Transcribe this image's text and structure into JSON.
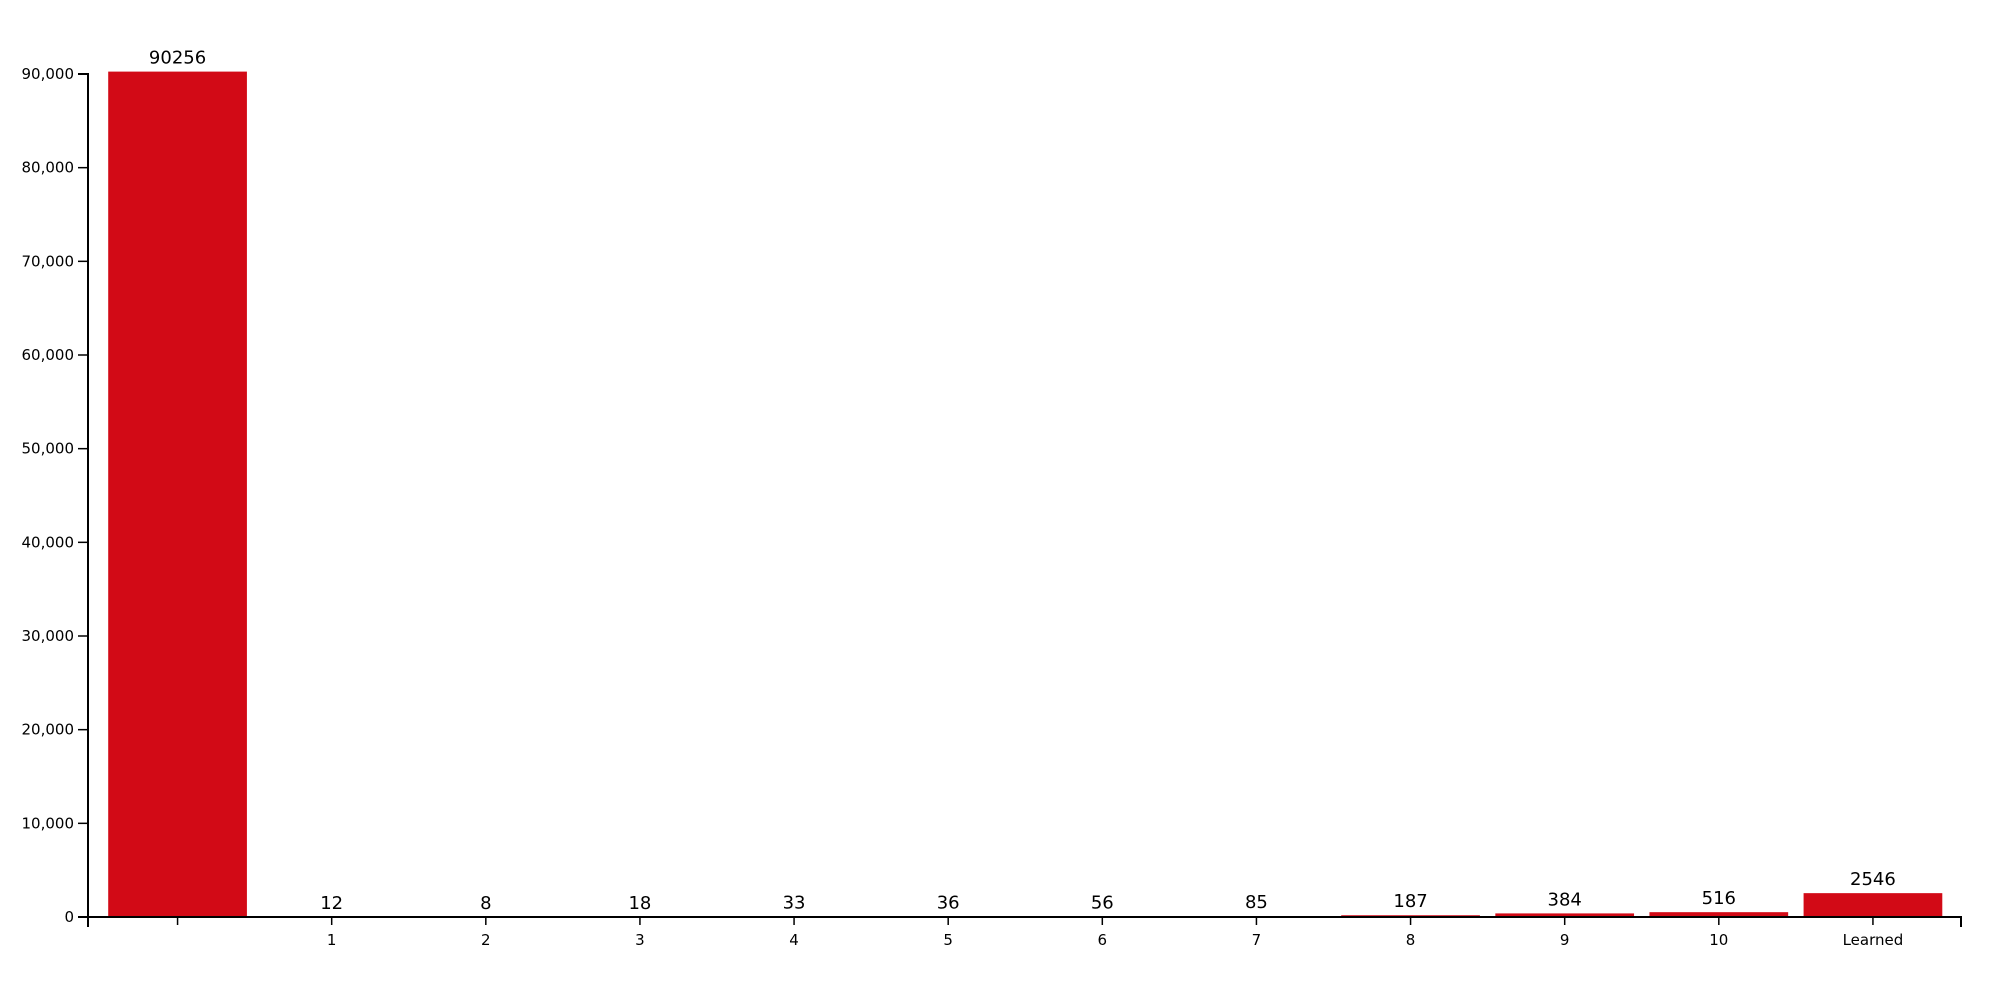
{
  "chart_data": {
    "type": "bar",
    "title": "",
    "xlabel": "",
    "ylabel": "",
    "categories": [
      "",
      "1",
      "2",
      "3",
      "4",
      "5",
      "6",
      "7",
      "8",
      "9",
      "10",
      "Learned"
    ],
    "values": [
      90256,
      12,
      8,
      18,
      33,
      36,
      56,
      85,
      187,
      384,
      516,
      2546
    ],
    "ylim": [
      0,
      90000
    ],
    "yticks": [
      0,
      10000,
      20000,
      30000,
      40000,
      50000,
      60000,
      70000,
      80000,
      90000
    ],
    "ytick_labels": [
      "0",
      "10,000",
      "20,000",
      "30,000",
      "40,000",
      "50,000",
      "60,000",
      "70,000",
      "80,000",
      "90,000"
    ],
    "data_labels": [
      "90256",
      "12",
      "8",
      "18",
      "33",
      "36",
      "56",
      "85",
      "187",
      "384",
      "516",
      "2546"
    ],
    "grid": false,
    "bar_color": "#d20a16"
  }
}
